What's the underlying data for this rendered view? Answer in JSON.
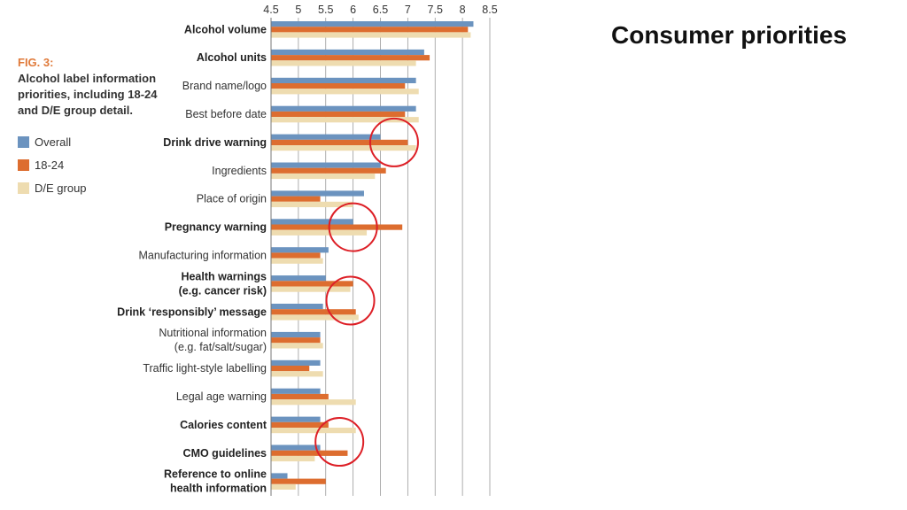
{
  "slide": {
    "title": "Consumer priorities"
  },
  "figure": {
    "number": "FIG. 3:",
    "caption": "Alcohol label information priorities, including 18-24 and D/E group detail."
  },
  "colors": {
    "overall": "#6b93bf",
    "age_18_24": "#dd6d2f",
    "de_group": "#eedcb0",
    "highlight": "#dd1f26",
    "grid": "#9a9a9a"
  },
  "chart_data": {
    "type": "bar",
    "orientation": "horizontal",
    "xlim": [
      4.5,
      8.5
    ],
    "xticks": [
      "4.5",
      "5",
      "5.5",
      "6",
      "6.5",
      "7",
      "7.5",
      "8",
      "8.5"
    ],
    "tick_values": [
      4.5,
      5,
      5.5,
      6,
      6.5,
      7,
      7.5,
      8,
      8.5
    ],
    "grid": true,
    "legend_placement": "left",
    "categories": [
      {
        "label": [
          "Alcohol volume"
        ],
        "bold": true
      },
      {
        "label": [
          "Alcohol units"
        ],
        "bold": true
      },
      {
        "label": [
          "Brand name/logo"
        ],
        "bold": false
      },
      {
        "label": [
          "Best before date"
        ],
        "bold": false
      },
      {
        "label": [
          "Drink drive warning"
        ],
        "bold": true
      },
      {
        "label": [
          "Ingredients"
        ],
        "bold": false
      },
      {
        "label": [
          "Place of origin"
        ],
        "bold": false
      },
      {
        "label": [
          "Pregnancy warning"
        ],
        "bold": true
      },
      {
        "label": [
          "Manufacturing information"
        ],
        "bold": false
      },
      {
        "label": [
          "Health warnings",
          "(e.g. cancer risk)"
        ],
        "bold": true
      },
      {
        "label": [
          "Drink ‘responsibly’ message"
        ],
        "bold": true
      },
      {
        "label": [
          "Nutritional information",
          "(e.g. fat/salt/sugar)"
        ],
        "bold": false
      },
      {
        "label": [
          "Traffic light-style labelling"
        ],
        "bold": false
      },
      {
        "label": [
          "Legal age warning"
        ],
        "bold": false
      },
      {
        "label": [
          "Calories content"
        ],
        "bold": true
      },
      {
        "label": [
          "CMO guidelines"
        ],
        "bold": true
      },
      {
        "label": [
          "Reference to online",
          "health information"
        ],
        "bold": true
      }
    ],
    "series": [
      {
        "name": "Overall",
        "color_key": "overall",
        "values": [
          8.2,
          7.3,
          7.15,
          7.15,
          6.5,
          6.5,
          6.2,
          6.0,
          5.55,
          5.5,
          5.45,
          5.4,
          5.4,
          5.4,
          5.4,
          5.4,
          4.8
        ]
      },
      {
        "name": "18-24",
        "color_key": "age_18_24",
        "values": [
          8.1,
          7.4,
          6.95,
          6.95,
          7.0,
          6.6,
          5.4,
          6.9,
          5.4,
          6.0,
          6.05,
          5.4,
          5.2,
          5.55,
          5.55,
          5.9,
          5.5
        ]
      },
      {
        "name": "D/E group",
        "color_key": "de_group",
        "values": [
          8.15,
          7.15,
          7.2,
          7.2,
          7.15,
          6.4,
          6.0,
          6.25,
          5.45,
          5.95,
          6.1,
          5.45,
          5.45,
          6.05,
          6.05,
          5.3,
          4.95
        ]
      }
    ],
    "highlights": [
      {
        "category_index": 4,
        "x": 6.75
      },
      {
        "category_index": 7,
        "x": 6.0
      },
      {
        "category_index": 9.6,
        "x": 5.95
      },
      {
        "category_index": 14.6,
        "x": 5.75
      }
    ]
  }
}
